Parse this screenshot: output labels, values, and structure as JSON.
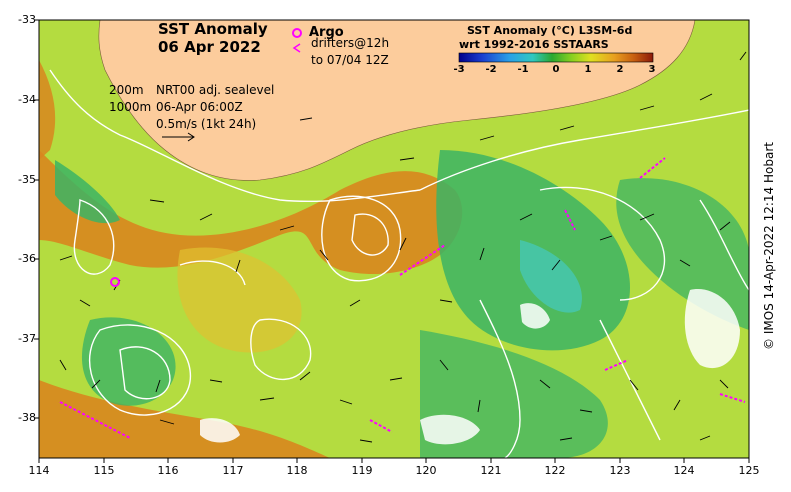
{
  "title": {
    "line1": "SST Anomaly",
    "line2": "06 Apr 2022"
  },
  "legend": {
    "argo_label": "Argo",
    "drifters_line1": "drifters@12h",
    "drifters_line2": "to 07/04 12Z",
    "argo_color": "#ff00ff",
    "drifter_color": "#ff00ff"
  },
  "info": {
    "depth_200": "200m",
    "depth_1000": "1000m",
    "product": "NRT00 adj. sealevel",
    "datetime": "06-Apr 06:00Z",
    "vector_scale": "0.5m/s (1kt 24h)"
  },
  "colorbar": {
    "title1": "SST Anomaly (°C) L3SM-6d",
    "title2": "wrt 1992-2016 SSTAARS",
    "ticks": [
      "-3",
      "-2",
      "-1",
      "0",
      "1",
      "2",
      "3"
    ],
    "colors": [
      "#00008b",
      "#1a3fd0",
      "#2aa0e8",
      "#30c8c0",
      "#2aa830",
      "#88d020",
      "#e0e020",
      "#e8a020",
      "#c86010",
      "#8b1a0a"
    ]
  },
  "axes": {
    "xticks": [
      "114",
      "115",
      "116",
      "117",
      "118",
      "119",
      "120",
      "121",
      "122",
      "123",
      "124",
      "125"
    ],
    "yticks": [
      "-33",
      "-34",
      "-35",
      "-36",
      "-37",
      "-38"
    ]
  },
  "credit": "© IMOS 14-Apr-2022 12:14 Hobart",
  "colors": {
    "land": "#fccc9c",
    "warm": "#d8861e",
    "neutral": "#b4dc40",
    "cool": "#3cb464",
    "contour": "#ffffff"
  }
}
